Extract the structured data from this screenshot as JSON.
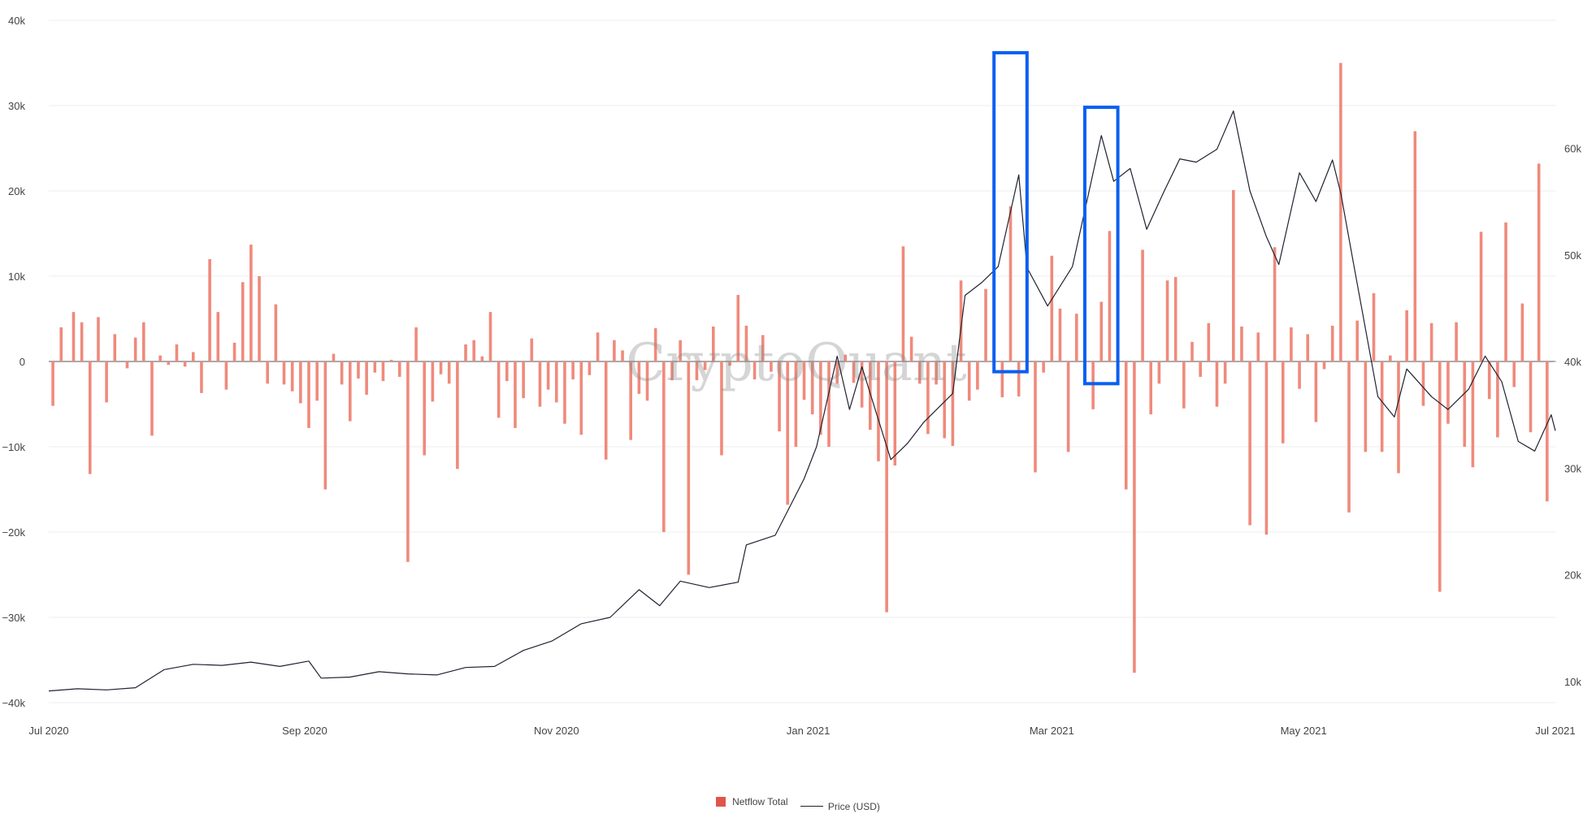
{
  "watermark": "CryptoQuant",
  "colors": {
    "bar": "#ef8a7c",
    "line": "#1f2330",
    "highlight": "#0a5ff0",
    "grid": "#eeeeee",
    "legend_bar": "#e0554a"
  },
  "legend": {
    "bar_label": "Netflow Total",
    "line_label": "Price (USD)"
  },
  "chart_data": {
    "type": "bar+line",
    "x_start": "2020-07-01",
    "x_end": "2021-07-01",
    "x_ticks": [
      {
        "date": "2020-07-01",
        "label": "Jul 2020"
      },
      {
        "date": "2020-09-01",
        "label": "Sep 2020"
      },
      {
        "date": "2020-11-01",
        "label": "Nov 2020"
      },
      {
        "date": "2021-01-01",
        "label": "Jan 2021"
      },
      {
        "date": "2021-03-01",
        "label": "Mar 2021"
      },
      {
        "date": "2021-05-01",
        "label": "May 2021"
      },
      {
        "date": "2021-07-01",
        "label": "Jul 2021"
      }
    ],
    "y_left": {
      "range": [
        -40000,
        40000
      ],
      "ticks": [
        {
          "v": 40000,
          "label": "40k"
        },
        {
          "v": 30000,
          "label": "30k"
        },
        {
          "v": 20000,
          "label": "20k"
        },
        {
          "v": 10000,
          "label": "10k"
        },
        {
          "v": 0,
          "label": "0"
        },
        {
          "v": -10000,
          "label": "−10k"
        },
        {
          "v": -20000,
          "label": "−20k"
        },
        {
          "v": -30000,
          "label": "−30k"
        },
        {
          "v": -40000,
          "label": "−40k"
        }
      ]
    },
    "y_right": {
      "range": [
        8000,
        72000
      ],
      "ticks": [
        {
          "v": 60000,
          "label": "60k"
        },
        {
          "v": 50000,
          "label": "50k"
        },
        {
          "v": 40000,
          "label": "40k"
        },
        {
          "v": 30000,
          "label": "30k"
        },
        {
          "v": 20000,
          "label": "20k"
        },
        {
          "v": 10000,
          "label": "10k"
        }
      ]
    },
    "netflow": {
      "name": "Netflow Total",
      "points": [
        [
          "2020-07-02",
          -5200
        ],
        [
          "2020-07-04",
          4000
        ],
        [
          "2020-07-07",
          5800
        ],
        [
          "2020-07-09",
          4600
        ],
        [
          "2020-07-11",
          -13200
        ],
        [
          "2020-07-13",
          5200
        ],
        [
          "2020-07-15",
          -4800
        ],
        [
          "2020-07-17",
          3200
        ],
        [
          "2020-07-20",
          -800
        ],
        [
          "2020-07-22",
          2800
        ],
        [
          "2020-07-24",
          4600
        ],
        [
          "2020-07-26",
          -8700
        ],
        [
          "2020-07-28",
          700
        ],
        [
          "2020-07-30",
          -400
        ],
        [
          "2020-08-01",
          2000
        ],
        [
          "2020-08-03",
          -600
        ],
        [
          "2020-08-05",
          1100
        ],
        [
          "2020-08-07",
          -3700
        ],
        [
          "2020-08-09",
          12000
        ],
        [
          "2020-08-11",
          5800
        ],
        [
          "2020-08-13",
          -3300
        ],
        [
          "2020-08-15",
          2200
        ],
        [
          "2020-08-17",
          9300
        ],
        [
          "2020-08-19",
          13700
        ],
        [
          "2020-08-21",
          10000
        ],
        [
          "2020-08-23",
          -2600
        ],
        [
          "2020-08-25",
          6700
        ],
        [
          "2020-08-27",
          -2700
        ],
        [
          "2020-08-29",
          -3500
        ],
        [
          "2020-08-31",
          -4900
        ],
        [
          "2020-09-02",
          -7800
        ],
        [
          "2020-09-04",
          -4600
        ],
        [
          "2020-09-06",
          -15000
        ],
        [
          "2020-09-08",
          900
        ],
        [
          "2020-09-10",
          -2700
        ],
        [
          "2020-09-12",
          -7000
        ],
        [
          "2020-09-14",
          -2000
        ],
        [
          "2020-09-16",
          -3900
        ],
        [
          "2020-09-18",
          -1300
        ],
        [
          "2020-09-20",
          -2300
        ],
        [
          "2020-09-22",
          200
        ],
        [
          "2020-09-24",
          -1800
        ],
        [
          "2020-09-26",
          -23500
        ],
        [
          "2020-09-28",
          4000
        ],
        [
          "2020-09-30",
          -11000
        ],
        [
          "2020-10-02",
          -4700
        ],
        [
          "2020-10-04",
          -1500
        ],
        [
          "2020-10-06",
          -2600
        ],
        [
          "2020-10-08",
          -12600
        ],
        [
          "2020-10-10",
          2000
        ],
        [
          "2020-10-12",
          2500
        ],
        [
          "2020-10-14",
          600
        ],
        [
          "2020-10-16",
          5800
        ],
        [
          "2020-10-18",
          -6600
        ],
        [
          "2020-10-20",
          -2300
        ],
        [
          "2020-10-22",
          -7800
        ],
        [
          "2020-10-24",
          -4300
        ],
        [
          "2020-10-26",
          2700
        ],
        [
          "2020-10-28",
          -5300
        ],
        [
          "2020-10-30",
          -3300
        ],
        [
          "2020-11-01",
          -4800
        ],
        [
          "2020-11-03",
          -7300
        ],
        [
          "2020-11-05",
          -2100
        ],
        [
          "2020-11-07",
          -8600
        ],
        [
          "2020-11-09",
          -1600
        ],
        [
          "2020-11-11",
          3400
        ],
        [
          "2020-11-13",
          -11500
        ],
        [
          "2020-11-15",
          2500
        ],
        [
          "2020-11-17",
          1300
        ],
        [
          "2020-11-19",
          -9200
        ],
        [
          "2020-11-21",
          -3800
        ],
        [
          "2020-11-23",
          -4600
        ],
        [
          "2020-11-25",
          3900
        ],
        [
          "2020-11-27",
          -20000
        ],
        [
          "2020-11-29",
          -2200
        ],
        [
          "2020-12-01",
          2500
        ],
        [
          "2020-12-03",
          -25000
        ],
        [
          "2020-12-05",
          -2200
        ],
        [
          "2020-12-07",
          -1000
        ],
        [
          "2020-12-09",
          4100
        ],
        [
          "2020-12-11",
          -11000
        ],
        [
          "2020-12-13",
          -500
        ],
        [
          "2020-12-15",
          7800
        ],
        [
          "2020-12-17",
          4200
        ],
        [
          "2020-12-19",
          -2100
        ],
        [
          "2020-12-21",
          3100
        ],
        [
          "2020-12-23",
          -1200
        ],
        [
          "2020-12-25",
          -8200
        ],
        [
          "2020-12-27",
          -16800
        ],
        [
          "2020-12-29",
          -10000
        ],
        [
          "2020-12-31",
          -4500
        ],
        [
          "2021-01-02",
          -6200
        ],
        [
          "2021-01-04",
          -8600
        ],
        [
          "2021-01-06",
          -10000
        ],
        [
          "2021-01-08",
          -2600
        ],
        [
          "2021-01-10",
          800
        ],
        [
          "2021-01-12",
          -2500
        ],
        [
          "2021-01-14",
          -5400
        ],
        [
          "2021-01-16",
          -8000
        ],
        [
          "2021-01-18",
          -11700
        ],
        [
          "2021-01-20",
          -29400
        ],
        [
          "2021-01-22",
          -12200
        ],
        [
          "2021-01-24",
          13500
        ],
        [
          "2021-01-26",
          2900
        ],
        [
          "2021-01-28",
          -2600
        ],
        [
          "2021-01-30",
          -8500
        ],
        [
          "2021-02-01",
          -2700
        ],
        [
          "2021-02-03",
          -9000
        ],
        [
          "2021-02-05",
          -9900
        ],
        [
          "2021-02-07",
          9500
        ],
        [
          "2021-02-09",
          -4600
        ],
        [
          "2021-02-11",
          -3300
        ],
        [
          "2021-02-13",
          8500
        ],
        [
          "2021-02-15",
          10000
        ],
        [
          "2021-02-17",
          -4200
        ],
        [
          "2021-02-19",
          18200
        ],
        [
          "2021-02-21",
          -4100
        ],
        [
          "2021-02-23",
          12700
        ],
        [
          "2021-02-25",
          -13000
        ],
        [
          "2021-02-27",
          -1300
        ],
        [
          "2021-03-01",
          12400
        ],
        [
          "2021-03-03",
          6200
        ],
        [
          "2021-03-05",
          -10600
        ],
        [
          "2021-03-07",
          5600
        ],
        [
          "2021-03-09",
          10000
        ],
        [
          "2021-03-11",
          -5600
        ],
        [
          "2021-03-13",
          7000
        ],
        [
          "2021-03-15",
          15300
        ],
        [
          "2021-03-17",
          11000
        ],
        [
          "2021-03-19",
          -15000
        ],
        [
          "2021-03-21",
          -36500
        ],
        [
          "2021-03-23",
          13100
        ],
        [
          "2021-03-25",
          -6200
        ],
        [
          "2021-03-27",
          -2600
        ],
        [
          "2021-03-29",
          9500
        ],
        [
          "2021-03-31",
          9900
        ],
        [
          "2021-04-02",
          -5500
        ],
        [
          "2021-04-04",
          2300
        ],
        [
          "2021-04-06",
          -1800
        ],
        [
          "2021-04-08",
          4500
        ],
        [
          "2021-04-10",
          -5300
        ],
        [
          "2021-04-12",
          -2600
        ],
        [
          "2021-04-14",
          20100
        ],
        [
          "2021-04-16",
          4100
        ],
        [
          "2021-04-18",
          -19200
        ],
        [
          "2021-04-20",
          3400
        ],
        [
          "2021-04-22",
          -20300
        ],
        [
          "2021-04-24",
          13400
        ],
        [
          "2021-04-26",
          -9600
        ],
        [
          "2021-04-28",
          4000
        ],
        [
          "2021-04-30",
          -3200
        ],
        [
          "2021-05-02",
          3200
        ],
        [
          "2021-05-04",
          -7100
        ],
        [
          "2021-05-06",
          -900
        ],
        [
          "2021-05-08",
          4200
        ],
        [
          "2021-05-10",
          35000
        ],
        [
          "2021-05-12",
          -17700
        ],
        [
          "2021-05-14",
          4800
        ],
        [
          "2021-05-16",
          -10600
        ],
        [
          "2021-05-18",
          8000
        ],
        [
          "2021-05-20",
          -10600
        ],
        [
          "2021-05-22",
          700
        ],
        [
          "2021-05-24",
          -13100
        ],
        [
          "2021-05-26",
          6000
        ],
        [
          "2021-05-28",
          27000
        ],
        [
          "2021-05-30",
          -5200
        ],
        [
          "2021-06-01",
          4500
        ],
        [
          "2021-06-03",
          -27000
        ],
        [
          "2021-06-05",
          -7300
        ],
        [
          "2021-06-07",
          4600
        ],
        [
          "2021-06-09",
          -10000
        ],
        [
          "2021-06-11",
          -12400
        ],
        [
          "2021-06-13",
          15200
        ],
        [
          "2021-06-15",
          -4400
        ],
        [
          "2021-06-17",
          -8900
        ],
        [
          "2021-06-19",
          16300
        ],
        [
          "2021-06-21",
          -3000
        ],
        [
          "2021-06-23",
          6800
        ],
        [
          "2021-06-25",
          -8300
        ],
        [
          "2021-06-27",
          23200
        ],
        [
          "2021-06-29",
          -16400
        ],
        [
          "2021-07-01",
          0
        ]
      ]
    },
    "price": {
      "name": "Price (USD)",
      "points": [
        [
          "2020-07-01",
          9100
        ],
        [
          "2020-07-08",
          9300
        ],
        [
          "2020-07-15",
          9200
        ],
        [
          "2020-07-22",
          9400
        ],
        [
          "2020-07-29",
          11100
        ],
        [
          "2020-08-05",
          11600
        ],
        [
          "2020-08-12",
          11500
        ],
        [
          "2020-08-19",
          11800
        ],
        [
          "2020-08-26",
          11400
        ],
        [
          "2020-09-02",
          11900
        ],
        [
          "2020-09-05",
          10300
        ],
        [
          "2020-09-12",
          10400
        ],
        [
          "2020-09-19",
          10900
        ],
        [
          "2020-09-26",
          10700
        ],
        [
          "2020-10-03",
          10600
        ],
        [
          "2020-10-10",
          11300
        ],
        [
          "2020-10-17",
          11400
        ],
        [
          "2020-10-24",
          12900
        ],
        [
          "2020-10-31",
          13800
        ],
        [
          "2020-11-07",
          15400
        ],
        [
          "2020-11-14",
          16000
        ],
        [
          "2020-11-21",
          18600
        ],
        [
          "2020-11-26",
          17100
        ],
        [
          "2020-12-01",
          19400
        ],
        [
          "2020-12-08",
          18800
        ],
        [
          "2020-12-15",
          19300
        ],
        [
          "2020-12-17",
          22800
        ],
        [
          "2020-12-24",
          23700
        ],
        [
          "2020-12-31",
          29000
        ],
        [
          "2021-01-03",
          32000
        ],
        [
          "2021-01-08",
          40500
        ],
        [
          "2021-01-11",
          35500
        ],
        [
          "2021-01-14",
          39500
        ],
        [
          "2021-01-21",
          30800
        ],
        [
          "2021-01-25",
          32300
        ],
        [
          "2021-01-29",
          34300
        ],
        [
          "2021-02-05",
          37000
        ],
        [
          "2021-02-08",
          46200
        ],
        [
          "2021-02-12",
          47400
        ],
        [
          "2021-02-16",
          48900
        ],
        [
          "2021-02-21",
          57500
        ],
        [
          "2021-02-23",
          48800
        ],
        [
          "2021-02-28",
          45200
        ],
        [
          "2021-03-06",
          48900
        ],
        [
          "2021-03-10",
          55900
        ],
        [
          "2021-03-13",
          61200
        ],
        [
          "2021-03-16",
          56900
        ],
        [
          "2021-03-20",
          58100
        ],
        [
          "2021-03-24",
          52400
        ],
        [
          "2021-03-28",
          55800
        ],
        [
          "2021-04-01",
          59000
        ],
        [
          "2021-04-05",
          58700
        ],
        [
          "2021-04-10",
          59900
        ],
        [
          "2021-04-14",
          63500
        ],
        [
          "2021-04-18",
          56000
        ],
        [
          "2021-04-22",
          51700
        ],
        [
          "2021-04-25",
          49100
        ],
        [
          "2021-04-30",
          57700
        ],
        [
          "2021-05-04",
          55000
        ],
        [
          "2021-05-08",
          58900
        ],
        [
          "2021-05-10",
          55800
        ],
        [
          "2021-05-13",
          49400
        ],
        [
          "2021-05-19",
          36700
        ],
        [
          "2021-05-23",
          34800
        ],
        [
          "2021-05-26",
          39300
        ],
        [
          "2021-06-01",
          36700
        ],
        [
          "2021-06-05",
          35500
        ],
        [
          "2021-06-10",
          37400
        ],
        [
          "2021-06-14",
          40500
        ],
        [
          "2021-06-18",
          38100
        ],
        [
          "2021-06-22",
          32500
        ],
        [
          "2021-06-26",
          31600
        ],
        [
          "2021-06-30",
          35000
        ],
        [
          "2021-07-01",
          33500
        ]
      ]
    },
    "highlights": [
      {
        "x0": "2021-02-15",
        "x1": "2021-02-23",
        "y0": -1200,
        "y1": 36200
      },
      {
        "x0": "2021-03-09",
        "x1": "2021-03-17",
        "y0": -2600,
        "y1": 29800
      }
    ]
  }
}
